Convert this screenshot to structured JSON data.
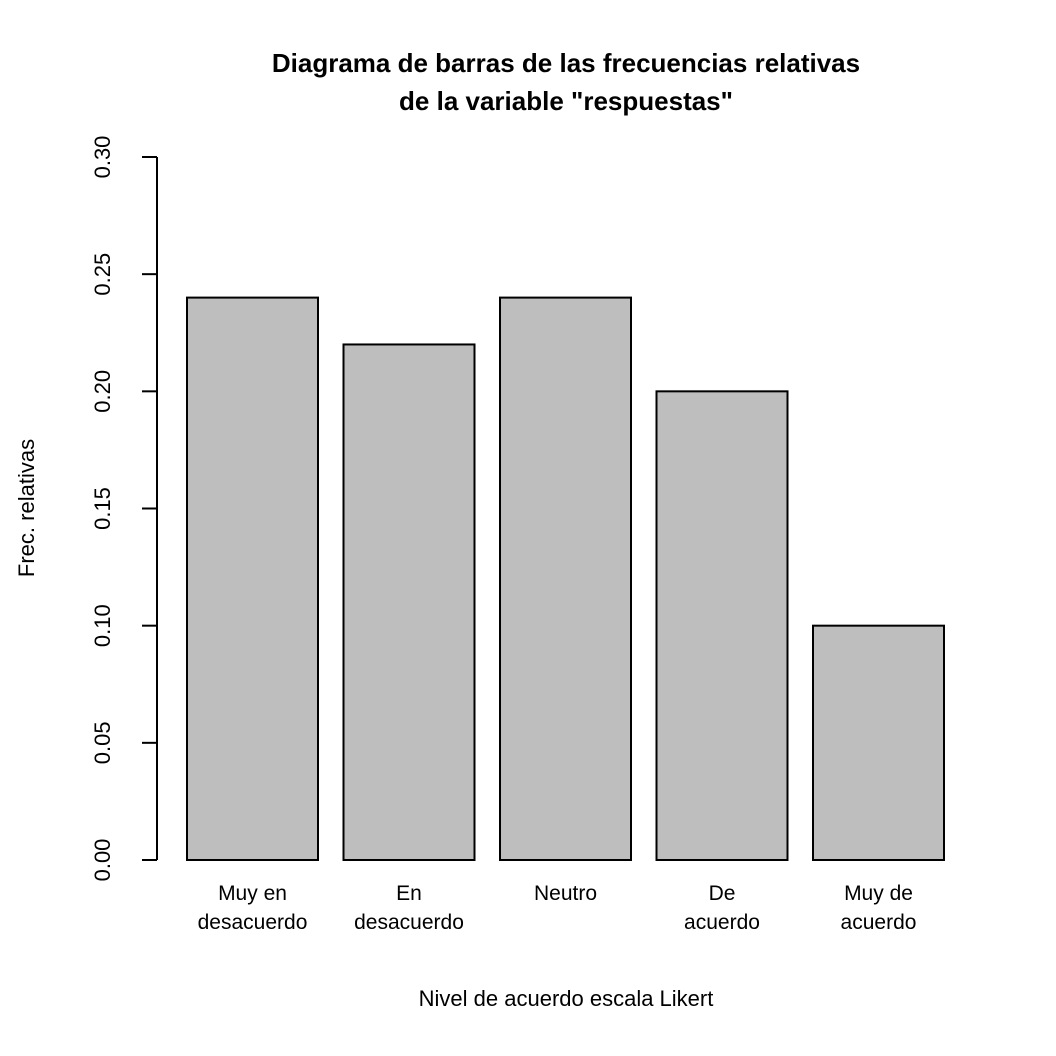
{
  "chart_data": {
    "type": "bar",
    "title_lines": [
      "Diagrama de barras de las frecuencias relativas",
      "de la variable \"respuestas\""
    ],
    "xlabel": "Nivel de acuerdo escala Likert",
    "ylabel": "Frec. relativas",
    "categories": [
      [
        "Muy en",
        "desacuerdo"
      ],
      [
        "En",
        "desacuerdo"
      ],
      [
        "Neutro"
      ],
      [
        "De",
        "acuerdo"
      ],
      [
        "Muy de",
        "acuerdo"
      ]
    ],
    "values": [
      0.24,
      0.22,
      0.24,
      0.2,
      0.1
    ],
    "ylim": [
      0,
      0.3
    ],
    "yticks": [
      "0.00",
      "0.05",
      "0.10",
      "0.15",
      "0.20",
      "0.25",
      "0.30"
    ],
    "bar_color": "#bebebe",
    "grid": false,
    "legend": "none"
  }
}
